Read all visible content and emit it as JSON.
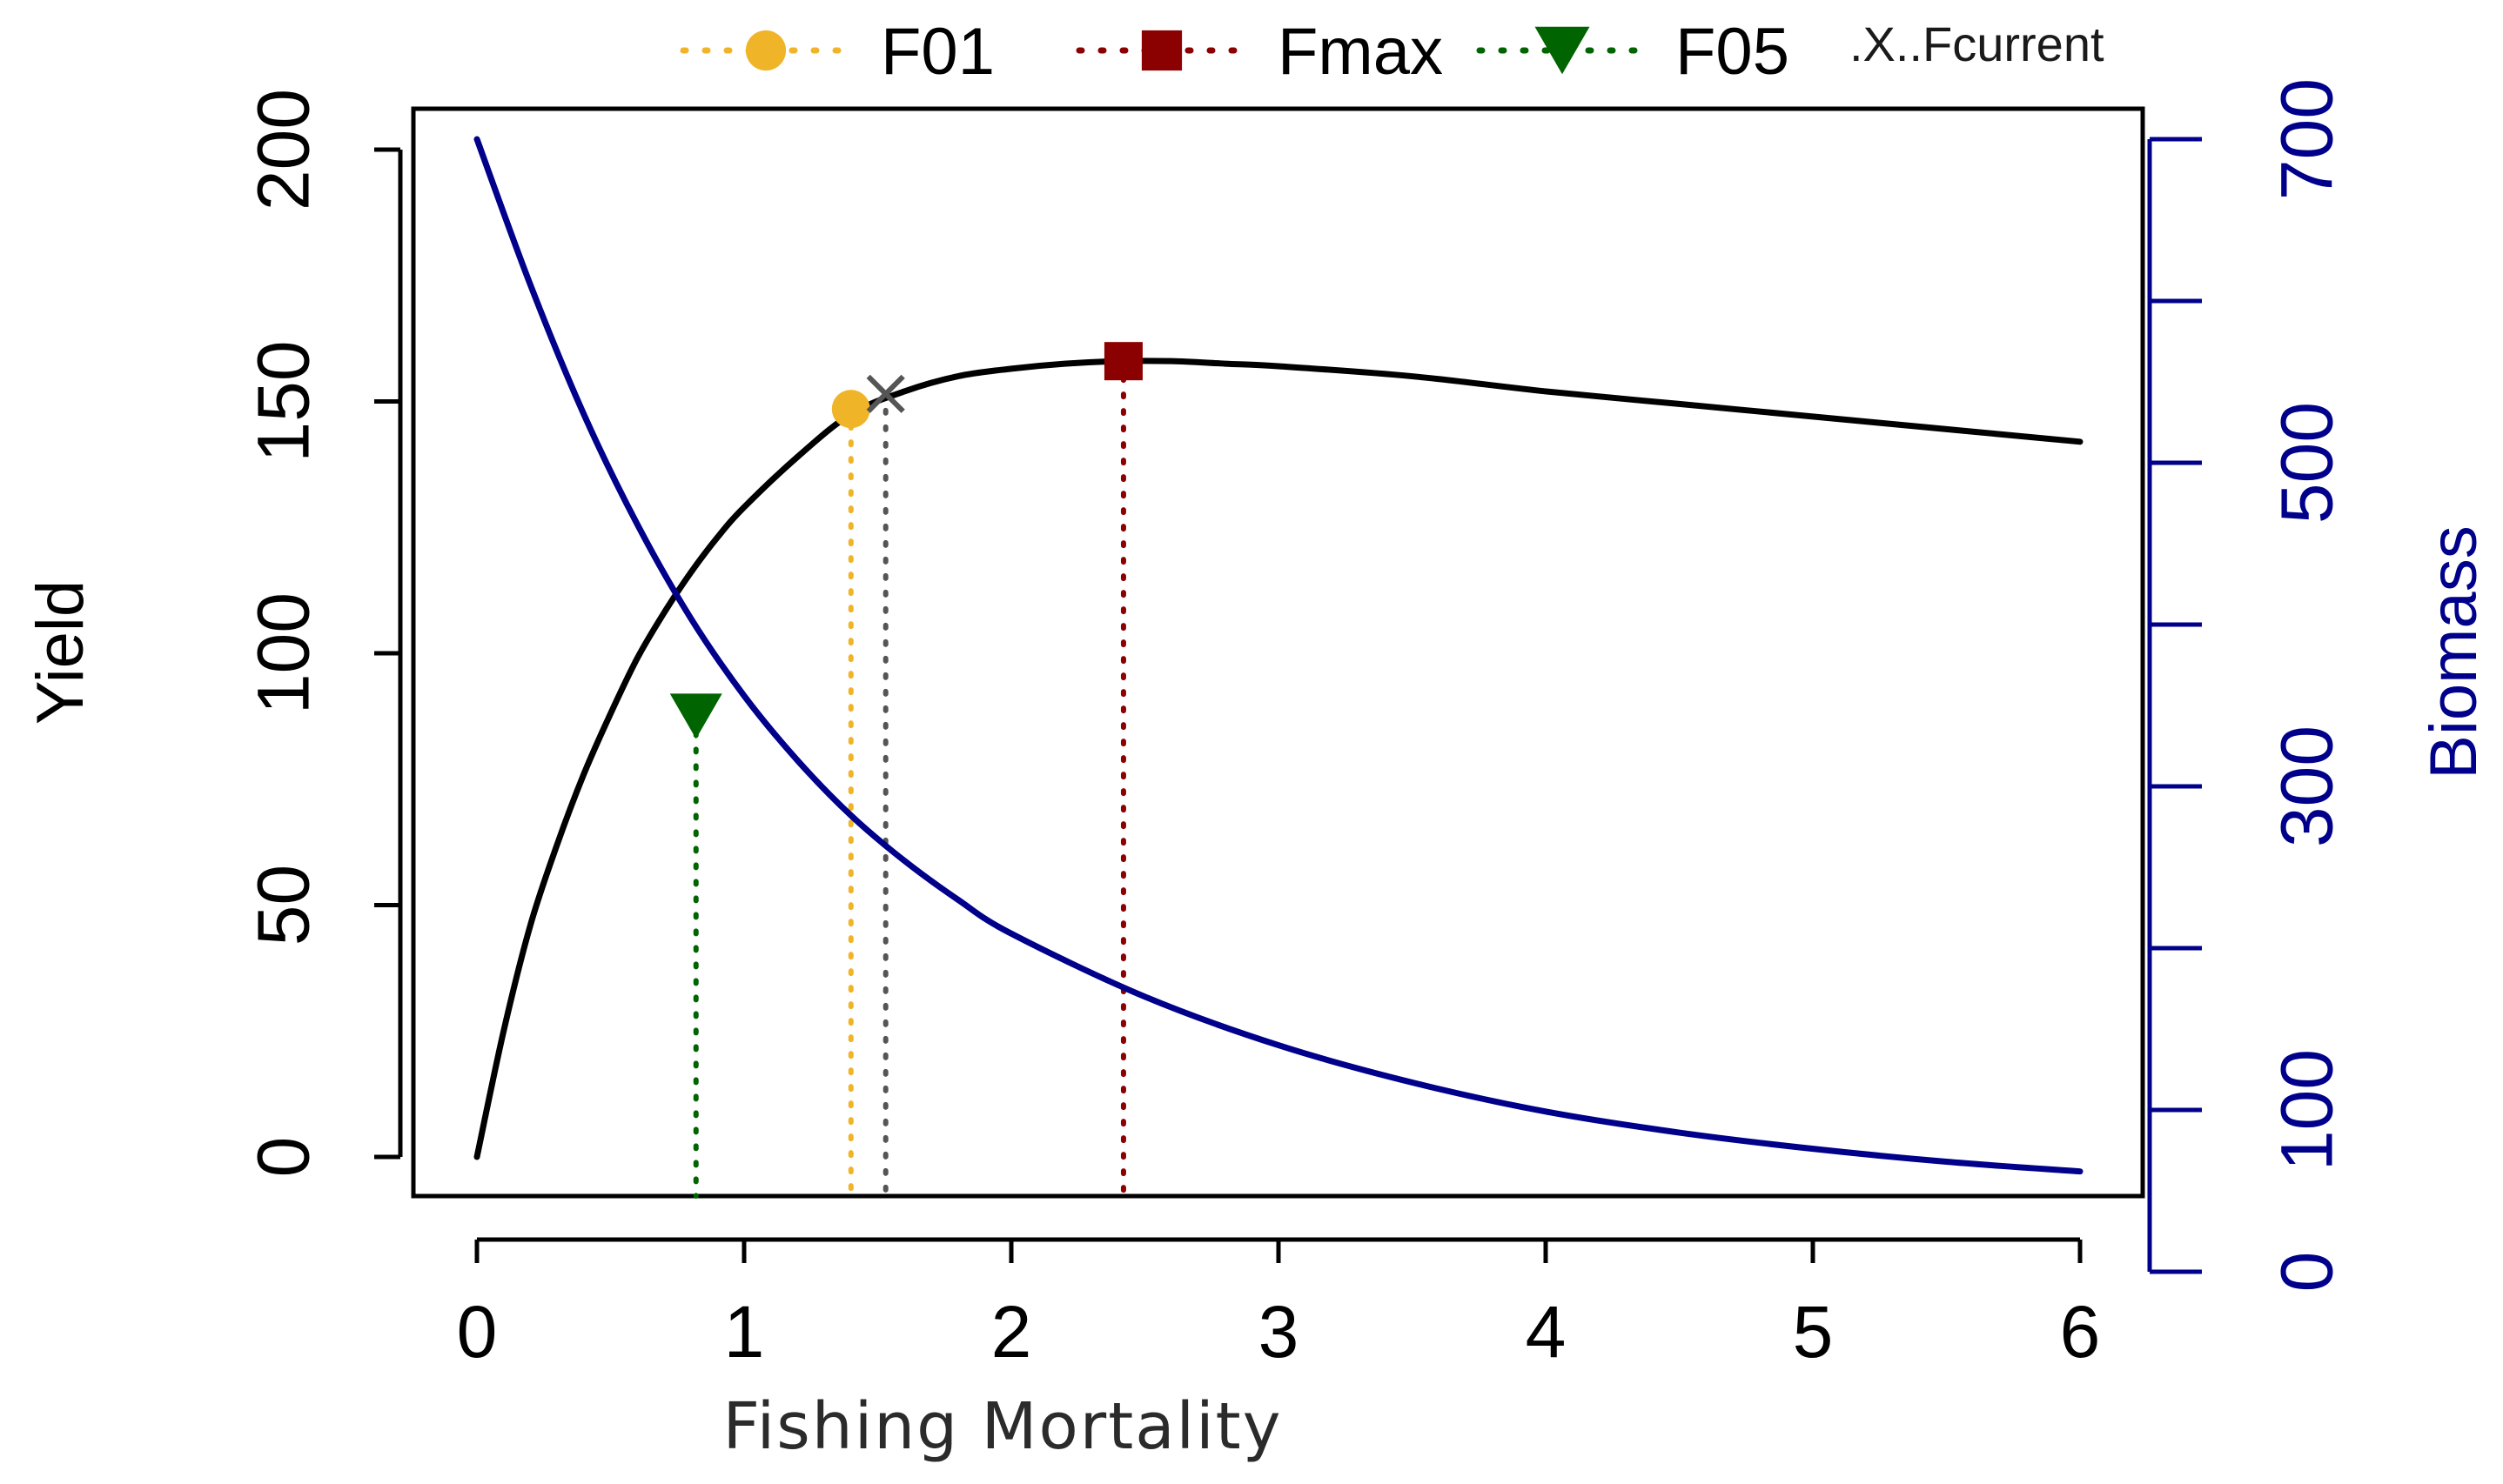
{
  "chart_data": {
    "type": "line",
    "title": "",
    "xlabel": "Fishing Mortality",
    "ylabel": "Yield",
    "ylabel_right": "Biomass",
    "xlim": [
      0,
      6
    ],
    "ylim": [
      0,
      200
    ],
    "ylim_right": [
      0,
      700
    ],
    "x_ticks": [
      0,
      1,
      2,
      3,
      4,
      5,
      6
    ],
    "x_tick_labels": [
      "0",
      "1",
      "2",
      "3",
      "4",
      "5",
      "6"
    ],
    "y_ticks": [
      0,
      50,
      100,
      150,
      200
    ],
    "y_tick_labels": [
      "0",
      "50",
      "100",
      "150",
      "200"
    ],
    "y_right_ticks": [
      0,
      100,
      200,
      300,
      400,
      500,
      600,
      700
    ],
    "y_right_tick_labels": [
      "0",
      "100",
      "",
      "300",
      "",
      "500",
      "",
      "700"
    ],
    "grid": false,
    "legend_position": "top",
    "series": [
      {
        "name": "Yield",
        "axis": "left",
        "color": "#000000",
        "x": [
          0,
          0.1,
          0.2,
          0.3,
          0.4,
          0.5,
          0.6,
          0.7,
          0.8,
          0.9,
          1.0,
          1.2,
          1.4,
          1.6,
          1.8,
          2.0,
          2.2,
          2.4,
          2.6,
          2.8,
          3.0,
          3.5,
          4.0,
          4.5,
          5.0,
          5.5,
          6.0
        ],
        "values": [
          0,
          25,
          46,
          62,
          76,
          88,
          99,
          108,
          116,
          123,
          129,
          139,
          147.5,
          152,
          155,
          156.5,
          157.5,
          158,
          158,
          157.5,
          157,
          155,
          152,
          149.5,
          147,
          144.5,
          142
        ]
      },
      {
        "name": "Biomass",
        "axis": "right",
        "color": "#00008b",
        "x": [
          0,
          0.2,
          0.4,
          0.6,
          0.8,
          1.0,
          1.2,
          1.4,
          1.6,
          1.8,
          2.0,
          2.5,
          3.0,
          3.5,
          4.0,
          4.5,
          5.0,
          5.5,
          6.0
        ],
        "values": [
          700,
          610,
          530,
          462,
          404,
          356,
          316,
          282,
          254,
          230,
          209,
          170,
          140,
          117,
          99,
          86,
          76,
          68,
          62
        ]
      }
    ],
    "reference_points": [
      {
        "name": "F01",
        "x": 1.4,
        "y": 148.5,
        "marker": "circle",
        "color": "#f0b429"
      },
      {
        "name": "Fmax",
        "x": 2.42,
        "y": 158,
        "marker": "square",
        "color": "#8b0000"
      },
      {
        "name": "F05",
        "x": 0.82,
        "y": 87.5,
        "marker": "triangle-down",
        "color": "#006400"
      },
      {
        "name": "Fcurrent",
        "x": 1.53,
        "y": 151.5,
        "marker": "x",
        "color": "#555555"
      }
    ],
    "legend": [
      {
        "label": "F01",
        "marker": "circle",
        "color": "#f0b429"
      },
      {
        "label": "Fmax",
        "marker": "square",
        "color": "#8b0000"
      },
      {
        "label": "F05",
        "marker": "triangle-down",
        "color": "#006400"
      },
      {
        "label": ".X..Fcurrent",
        "marker": "x",
        "color": "#555555"
      }
    ]
  }
}
